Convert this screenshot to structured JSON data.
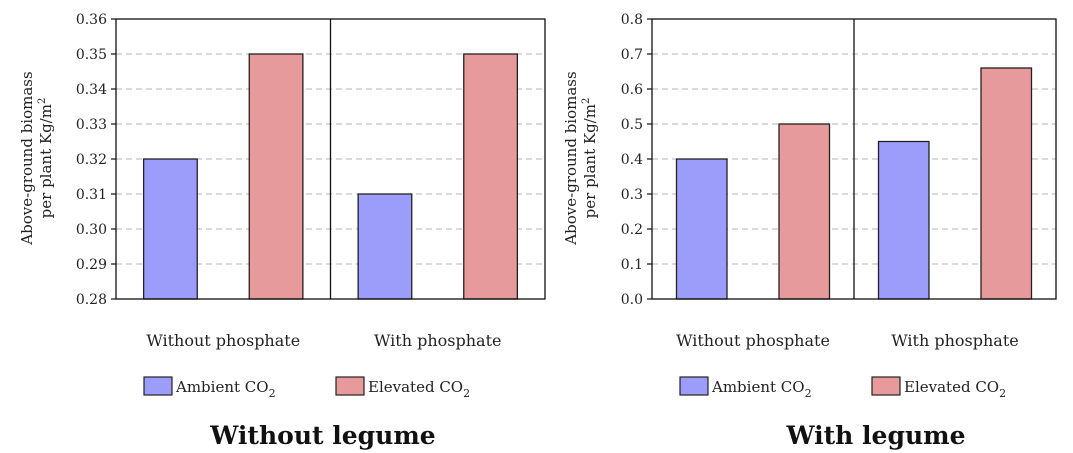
{
  "chart_data": [
    {
      "type": "bar",
      "title": "Without legume",
      "ylabel_line1": "Above-ground biomass",
      "ylabel_line2": "per plant Kg/m",
      "ylabel_sup": "2",
      "categories": [
        "Without phosphate",
        "With phosphate"
      ],
      "series": [
        {
          "name": "Ambient CO",
          "name_sub": "2",
          "color": "#9c9cfa",
          "values": [
            0.32,
            0.31
          ]
        },
        {
          "name": "Elevated CO",
          "name_sub": "2",
          "color": "#e79a9b",
          "values": [
            0.35,
            0.35
          ]
        }
      ],
      "ylim": [
        0.28,
        0.36
      ],
      "yticks": [
        "0.28",
        "0.29",
        "0.30",
        "0.31",
        "0.32",
        "0.33",
        "0.34",
        "0.35",
        "0.36"
      ],
      "grid": true,
      "legend_position": "bottom"
    },
    {
      "type": "bar",
      "title": "With legume",
      "ylabel_line1": "Above-ground biomass",
      "ylabel_line2": "per plant Kg/m",
      "ylabel_sup": "2",
      "categories": [
        "Without phosphate",
        "With phosphate"
      ],
      "series": [
        {
          "name": "Ambient CO",
          "name_sub": "2",
          "color": "#9c9cfa",
          "values": [
            0.4,
            0.45
          ]
        },
        {
          "name": "Elevated CO",
          "name_sub": "2",
          "color": "#e79a9b",
          "values": [
            0.5,
            0.66
          ]
        }
      ],
      "ylim": [
        0.0,
        0.8
      ],
      "yticks": [
        "0.0",
        "0.1",
        "0.2",
        "0.3",
        "0.4",
        "0.5",
        "0.6",
        "0.7",
        "0.8"
      ],
      "grid": true,
      "legend_position": "bottom"
    }
  ]
}
